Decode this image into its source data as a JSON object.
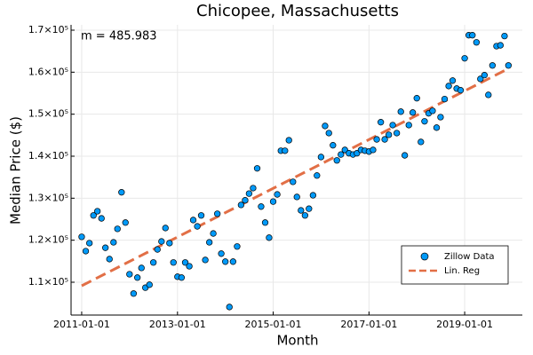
{
  "chart_data": {
    "type": "scatter",
    "title": "Chicopee, Massachusetts",
    "xlabel": "Month",
    "ylabel": "Median Price ($)",
    "annotation": "m = 485.983",
    "xlim": [
      "2010-10-12",
      "2020-03-16"
    ],
    "xticks": [
      "2011-01-01",
      "2013-01-01",
      "2015-01-01",
      "2017-01-01",
      "2019-01-01"
    ],
    "ylim": [
      102180,
      171270
    ],
    "yticks": [
      {
        "value": 110000,
        "label": "1.1×10⁵"
      },
      {
        "value": 120000,
        "label": "1.2×10⁵"
      },
      {
        "value": 130000,
        "label": "1.3×10⁵"
      },
      {
        "value": 140000,
        "label": "1.4×10⁵"
      },
      {
        "value": 150000,
        "label": "1.5×10⁵"
      },
      {
        "value": 160000,
        "label": "1.6×10⁵"
      },
      {
        "value": 170000,
        "label": "1.7×10⁵"
      }
    ],
    "grid": true,
    "legend": "lower right",
    "series": [
      {
        "name": "Zillow Data",
        "color": "#009af9",
        "mark": "marker",
        "x": [
          "2011-01-01",
          "2011-02-01",
          "2011-03-01",
          "2011-04-01",
          "2011-05-01",
          "2011-06-01",
          "2011-07-01",
          "2011-08-01",
          "2011-09-01",
          "2011-10-01",
          "2011-11-01",
          "2011-12-01",
          "2012-01-01",
          "2012-02-01",
          "2012-03-01",
          "2012-04-01",
          "2012-05-01",
          "2012-06-01",
          "2012-07-01",
          "2012-08-01",
          "2012-09-01",
          "2012-10-01",
          "2012-11-01",
          "2012-12-01",
          "2013-01-01",
          "2013-02-01",
          "2013-03-01",
          "2013-04-01",
          "2013-05-01",
          "2013-06-01",
          "2013-07-01",
          "2013-08-01",
          "2013-09-01",
          "2013-10-01",
          "2013-11-01",
          "2013-12-01",
          "2014-01-01",
          "2014-02-01",
          "2014-03-01",
          "2014-04-01",
          "2014-05-01",
          "2014-06-01",
          "2014-07-01",
          "2014-08-01",
          "2014-09-01",
          "2014-10-01",
          "2014-11-01",
          "2014-12-01",
          "2015-01-01",
          "2015-02-01",
          "2015-03-01",
          "2015-04-01",
          "2015-05-01",
          "2015-06-01",
          "2015-07-01",
          "2015-08-01",
          "2015-09-01",
          "2015-10-01",
          "2015-11-01",
          "2015-12-01",
          "2016-01-01",
          "2016-02-01",
          "2016-03-01",
          "2016-04-01",
          "2016-05-01",
          "2016-06-01",
          "2016-07-01",
          "2016-08-01",
          "2016-09-01",
          "2016-10-01",
          "2016-11-01",
          "2016-12-01",
          "2017-01-01",
          "2017-02-01",
          "2017-03-01",
          "2017-04-01",
          "2017-05-01",
          "2017-06-01",
          "2017-07-01",
          "2017-08-01",
          "2017-09-01",
          "2017-10-01",
          "2017-11-01",
          "2017-12-01",
          "2018-01-01",
          "2018-02-01",
          "2018-03-01",
          "2018-04-01",
          "2018-05-01",
          "2018-06-01",
          "2018-07-01",
          "2018-08-01",
          "2018-09-01",
          "2018-10-01",
          "2018-11-01",
          "2018-12-01",
          "2019-01-01",
          "2019-02-01",
          "2019-03-01",
          "2019-04-01",
          "2019-05-01",
          "2019-06-01",
          "2019-07-01",
          "2019-08-01",
          "2019-09-01",
          "2019-10-01",
          "2019-11-01",
          "2019-12-01"
        ],
        "values": [
          120800,
          117400,
          119300,
          125900,
          126900,
          125200,
          118200,
          115500,
          119500,
          122700,
          131400,
          124200,
          111900,
          107300,
          111100,
          113400,
          108700,
          109400,
          114700,
          117800,
          119700,
          122900,
          119300,
          114700,
          111300,
          111100,
          114700,
          113800,
          124800,
          123300,
          125900,
          115300,
          119500,
          121600,
          126300,
          116800,
          114900,
          104100,
          114900,
          118500,
          128400,
          129500,
          131100,
          132400,
          137100,
          128000,
          124200,
          120600,
          129200,
          130900,
          141300,
          141300,
          143800,
          133900,
          130300,
          127100,
          125900,
          127500,
          130700,
          135400,
          139800,
          147200,
          145500,
          142600,
          139000,
          140400,
          141500,
          140700,
          140400,
          140700,
          141500,
          141300,
          141100,
          141500,
          144000,
          148100,
          144000,
          145100,
          147400,
          145500,
          150600,
          140200,
          147400,
          150400,
          153800,
          143400,
          148300,
          150200,
          150800,
          146800,
          149300,
          153600,
          156700,
          158000,
          156100,
          155700,
          163300,
          168800,
          168800,
          167100,
          158400,
          159300,
          154600,
          161600,
          166200,
          166400,
          168600,
          161600
        ]
      },
      {
        "name": "Lin. Reg",
        "color": "#e26f46",
        "mark": "dashed-line",
        "x": [
          "2011-01-01",
          "2019-12-01"
        ],
        "values": [
          109150,
          160850
        ]
      }
    ]
  }
}
